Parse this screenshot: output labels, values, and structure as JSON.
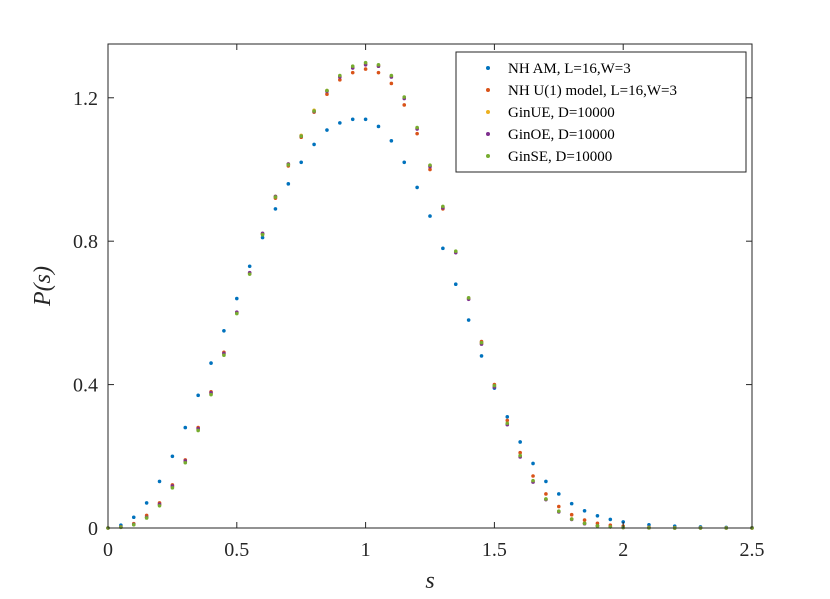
{
  "chart_data": {
    "type": "scatter",
    "title": "",
    "xlabel": "s",
    "ylabel": "P(s)",
    "xlim": [
      0,
      2.5
    ],
    "ylim": [
      0,
      1.35
    ],
    "xticks": [
      0,
      0.5,
      1,
      1.5,
      2,
      2.5
    ],
    "xtick_labels": [
      "0",
      "0.5",
      "1",
      "1.5",
      "2",
      "2.5"
    ],
    "yticks": [
      0,
      0.4,
      0.8,
      1.2
    ],
    "ytick_labels": [
      "0",
      "0.4",
      "0.8",
      "1.2"
    ],
    "legend_position": "top-right",
    "series": [
      {
        "name": "NH AM, L=16,W=3",
        "color": "#0072BD",
        "x": [
          0.0,
          0.05,
          0.1,
          0.15,
          0.2,
          0.25,
          0.3,
          0.35,
          0.4,
          0.45,
          0.5,
          0.55,
          0.6,
          0.65,
          0.7,
          0.75,
          0.8,
          0.85,
          0.9,
          0.95,
          1.0,
          1.05,
          1.1,
          1.15,
          1.2,
          1.25,
          1.3,
          1.35,
          1.4,
          1.45,
          1.5,
          1.55,
          1.6,
          1.65,
          1.7,
          1.75,
          1.8,
          1.85,
          1.9,
          1.95,
          2.0,
          2.1,
          2.2,
          2.3,
          2.4,
          2.5
        ],
        "y": [
          0.0,
          0.008,
          0.03,
          0.07,
          0.13,
          0.2,
          0.28,
          0.37,
          0.46,
          0.55,
          0.64,
          0.73,
          0.81,
          0.89,
          0.96,
          1.02,
          1.07,
          1.11,
          1.13,
          1.14,
          1.14,
          1.12,
          1.08,
          1.02,
          0.95,
          0.87,
          0.78,
          0.68,
          0.58,
          0.48,
          0.39,
          0.31,
          0.24,
          0.18,
          0.13,
          0.095,
          0.068,
          0.048,
          0.034,
          0.024,
          0.017,
          0.009,
          0.005,
          0.003,
          0.0015,
          0.001
        ]
      },
      {
        "name": "NH U(1) model, L=16,W=3",
        "color": "#D95319",
        "x": [
          0.0,
          0.05,
          0.1,
          0.15,
          0.2,
          0.25,
          0.3,
          0.35,
          0.4,
          0.45,
          0.5,
          0.55,
          0.6,
          0.65,
          0.7,
          0.75,
          0.8,
          0.85,
          0.9,
          0.95,
          1.0,
          1.05,
          1.1,
          1.15,
          1.2,
          1.25,
          1.3,
          1.35,
          1.4,
          1.45,
          1.5,
          1.55,
          1.6,
          1.65,
          1.7,
          1.75,
          1.8,
          1.85,
          1.9,
          1.95,
          2.0,
          2.1,
          2.2,
          2.3,
          2.4,
          2.5
        ],
        "y": [
          0.0,
          0.003,
          0.012,
          0.035,
          0.07,
          0.12,
          0.19,
          0.28,
          0.38,
          0.49,
          0.6,
          0.71,
          0.82,
          0.92,
          1.01,
          1.09,
          1.16,
          1.21,
          1.25,
          1.27,
          1.28,
          1.27,
          1.24,
          1.18,
          1.1,
          1.0,
          0.89,
          0.77,
          0.64,
          0.52,
          0.4,
          0.3,
          0.21,
          0.145,
          0.095,
          0.06,
          0.037,
          0.022,
          0.013,
          0.008,
          0.005,
          0.002,
          0.001,
          0.0005,
          0.0002,
          0.0001
        ]
      },
      {
        "name": "GinUE, D=10000",
        "color": "#EDB120",
        "x": [
          0.0,
          0.05,
          0.1,
          0.15,
          0.2,
          0.25,
          0.3,
          0.35,
          0.4,
          0.45,
          0.5,
          0.55,
          0.6,
          0.65,
          0.7,
          0.75,
          0.8,
          0.85,
          0.9,
          0.95,
          1.0,
          1.05,
          1.1,
          1.15,
          1.2,
          1.25,
          1.3,
          1.35,
          1.4,
          1.45,
          1.5,
          1.55,
          1.6,
          1.65,
          1.7,
          1.75,
          1.8,
          1.85,
          1.9,
          1.95,
          2.0,
          2.1,
          2.2,
          2.3,
          2.4,
          2.5
        ],
        "y": [
          0.0,
          0.002,
          0.01,
          0.03,
          0.065,
          0.115,
          0.185,
          0.275,
          0.375,
          0.485,
          0.6,
          0.71,
          0.82,
          0.925,
          1.015,
          1.095,
          1.165,
          1.22,
          1.26,
          1.285,
          1.295,
          1.29,
          1.26,
          1.2,
          1.115,
          1.01,
          0.895,
          0.77,
          0.64,
          0.515,
          0.395,
          0.29,
          0.2,
          0.13,
          0.08,
          0.046,
          0.025,
          0.013,
          0.006,
          0.003,
          0.0015,
          0.0004,
          0.0001,
          0.0,
          0.0,
          0.0
        ]
      },
      {
        "name": "GinOE, D=10000",
        "color": "#7E2F8E",
        "x": [
          0.0,
          0.05,
          0.1,
          0.15,
          0.2,
          0.25,
          0.3,
          0.35,
          0.4,
          0.45,
          0.5,
          0.55,
          0.6,
          0.65,
          0.7,
          0.75,
          0.8,
          0.85,
          0.9,
          0.95,
          1.0,
          1.05,
          1.1,
          1.15,
          1.2,
          1.25,
          1.3,
          1.35,
          1.4,
          1.45,
          1.5,
          1.55,
          1.6,
          1.65,
          1.7,
          1.75,
          1.8,
          1.85,
          1.9,
          1.95,
          2.0,
          2.1,
          2.2,
          2.3,
          2.4,
          2.5
        ],
        "y": [
          0.0,
          0.002,
          0.01,
          0.03,
          0.066,
          0.117,
          0.187,
          0.277,
          0.377,
          0.487,
          0.602,
          0.712,
          0.822,
          0.925,
          1.015,
          1.093,
          1.162,
          1.218,
          1.258,
          1.283,
          1.292,
          1.288,
          1.258,
          1.198,
          1.113,
          1.008,
          0.893,
          0.768,
          0.638,
          0.513,
          0.393,
          0.288,
          0.198,
          0.128,
          0.079,
          0.045,
          0.024,
          0.012,
          0.006,
          0.003,
          0.0014,
          0.0004,
          0.0001,
          0.0,
          0.0,
          0.0
        ]
      },
      {
        "name": "GinSE, D=10000",
        "color": "#77AC30",
        "x": [
          0.0,
          0.05,
          0.1,
          0.15,
          0.2,
          0.25,
          0.3,
          0.35,
          0.4,
          0.45,
          0.5,
          0.55,
          0.6,
          0.65,
          0.7,
          0.75,
          0.8,
          0.85,
          0.9,
          0.95,
          1.0,
          1.05,
          1.1,
          1.15,
          1.2,
          1.25,
          1.3,
          1.35,
          1.4,
          1.45,
          1.5,
          1.55,
          1.6,
          1.65,
          1.7,
          1.75,
          1.8,
          1.85,
          1.9,
          1.95,
          2.0,
          2.1,
          2.2,
          2.3,
          2.4,
          2.5
        ],
        "y": [
          0.0,
          0.002,
          0.009,
          0.028,
          0.062,
          0.112,
          0.182,
          0.272,
          0.372,
          0.482,
          0.598,
          0.708,
          0.818,
          0.923,
          1.013,
          1.093,
          1.163,
          1.22,
          1.262,
          1.288,
          1.298,
          1.292,
          1.262,
          1.202,
          1.117,
          1.012,
          0.897,
          0.772,
          0.642,
          0.517,
          0.397,
          0.292,
          0.202,
          0.132,
          0.081,
          0.047,
          0.025,
          0.013,
          0.006,
          0.003,
          0.0015,
          0.0004,
          0.0001,
          0.0,
          0.0,
          0.0
        ]
      }
    ]
  }
}
